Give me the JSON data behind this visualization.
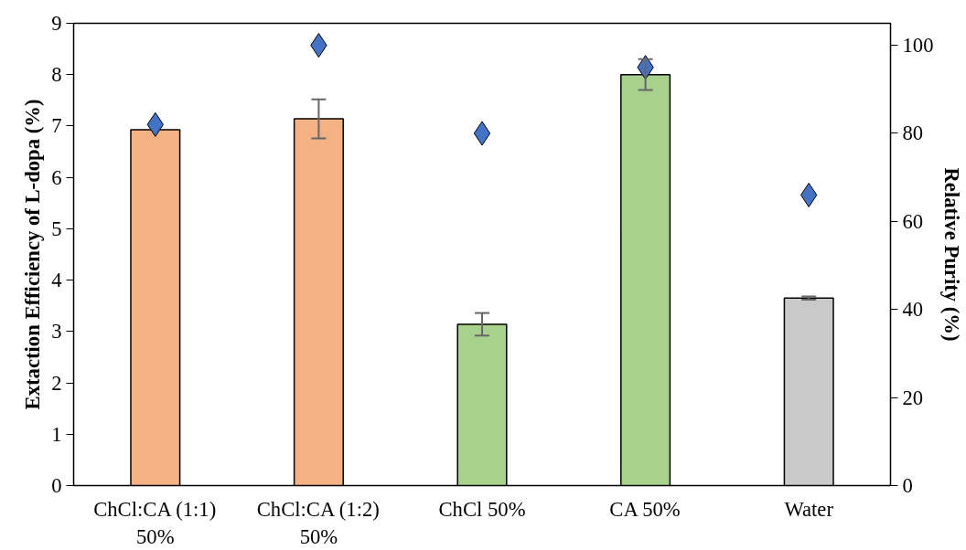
{
  "chart_data": {
    "type": "bar",
    "categories": [
      "ChCl:CA (1:1)\n50%",
      "ChCl:CA (1:2)\n50%",
      "ChCl 50%",
      "CA 50%",
      "Water"
    ],
    "ylabel": "Extaction Efficiency of L-dopa (%)",
    "y2label": "Relative Purity (%)",
    "ylim": [
      0,
      9
    ],
    "yticks": [
      0,
      1,
      2,
      3,
      4,
      5,
      6,
      7,
      8,
      9
    ],
    "y2lim": [
      0,
      105
    ],
    "y2ticks": [
      0,
      20,
      40,
      60,
      80,
      100
    ],
    "grid": false,
    "series": [
      {
        "colors": [
          "#f4b183",
          "#f4b183",
          "#a9d18e",
          "#a9d18e",
          "#c9c9c9"
        ],
        "values": [
          6.93,
          7.14,
          3.14,
          8.0,
          3.65
        ],
        "errors": [
          null,
          0.38,
          0.22,
          0.3,
          0.03
        ]
      },
      {
        "type": "scatter",
        "axis": "y2",
        "marker": "diamond",
        "color": "#4472c4",
        "values": [
          82,
          100,
          80,
          95,
          66
        ]
      }
    ]
  }
}
